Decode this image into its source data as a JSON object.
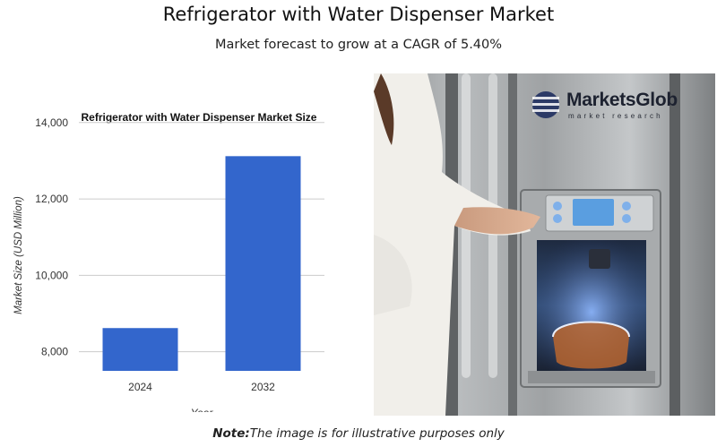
{
  "header": {
    "title": "Refrigerator with Water Dispenser Market",
    "subtitle": "Market forecast to grow at a CAGR of 5.40%"
  },
  "chart_data": {
    "type": "bar",
    "title": "Refrigerator with Water Dispenser Market Size",
    "categories": [
      "2024",
      "2032"
    ],
    "values": [
      8620,
      13120
    ],
    "xlabel": "Year",
    "ylabel": "Market Size (USD Million)",
    "ylim": [
      7500,
      14300
    ],
    "yticks": [
      8000,
      10000,
      12000,
      14000
    ],
    "ytick_labels": [
      "8,000",
      "10,000",
      "12,000",
      "14,000"
    ],
    "grid": true,
    "bar_color": "#3366cc"
  },
  "image": {
    "description_icon": "refrigerator-water-dispenser-photo",
    "logo": {
      "name": "MarketsGlob",
      "tagline": "market research",
      "color": "#1d2230"
    }
  },
  "footer": {
    "note_label": "Note:",
    "note_text": "The image is for illustrative purposes only"
  }
}
